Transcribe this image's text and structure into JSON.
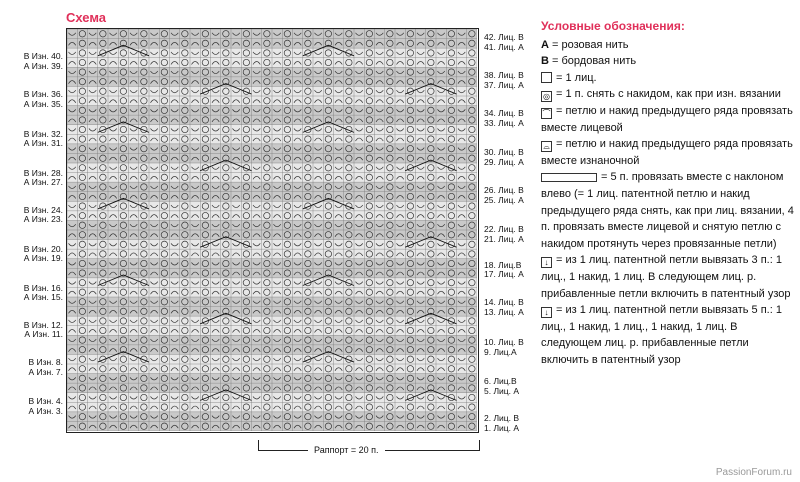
{
  "title": "Схема",
  "left_labels": [
    "В Изн. 40.",
    "А Изн. 39.",
    "В Изн. 36.",
    "А Изн. 35.",
    "В Изн. 32.",
    "А Изн. 31.",
    "В Изн. 28.",
    "А Изн. 27.",
    "В Изн. 24.",
    "А Изн. 23.",
    "В Изн. 20.",
    "А Изн. 19.",
    "В Изн. 16.",
    "А Изн. 15.",
    "В Изн. 12.",
    "А Изн. 11.",
    "В Изн. 8.",
    "А Изн. 7.",
    "В Изн. 4.",
    "А Изн. 3."
  ],
  "right_labels": [
    "42. Лиц. В",
    "41. Лиц. А",
    "38. Лиц. В",
    "37. Лиц. А",
    "34. Лиц. В",
    "33. Лиц. А",
    "30. Лиц. В",
    "29. Лиц. А",
    "26. Лиц. В",
    "25. Лиц. А",
    "22. Лиц. В",
    "21. Лиц. А",
    "18. Лиц.В",
    "17. Лиц. А",
    "14. Лиц. В",
    "13. Лиц. А",
    "10. Лиц. В",
    "9. Лиц.А",
    "6. Лиц.В",
    "5. Лиц. А",
    "2. Лиц. В",
    "1. Лиц. А"
  ],
  "repeat_label": "Раппорт = 20 п.",
  "legend": {
    "heading": "Условные обозначения:",
    "a_key": "А",
    "a_text": "= розовая нить",
    "b_key": "В",
    "b_text": "= бордовая нить",
    "knit_text": "= 1 лиц.",
    "slip_text": "= 1 п. снять с накидом, как при изн. вязании",
    "knit_together_text": "= петлю и накид предыдущего ряда провязать вместе лицевой",
    "purl_together_text": "= петлю и накид предыдущего ряда провязать вместе изнаночной",
    "dec5_text": "= 5 п. провязать вместе с наклоном влево (= 1 лиц. патентной петлю и накид предыдущего ряда снять, как при лиц. вязании, 4 п. провязать вместе лицевой и снятую петлю с накидом протянуть через провязанные петли)",
    "inc3_text": "= из 1 лиц. патентной петли вывязать 3 п.: 1 лиц., 1 накид, 1 лиц. В следующем лиц. р. прибавленные петли включить в патентный узор",
    "inc5_text": "= из 1 лиц. патентной петли вывязать 5 п.: 1 лиц., 1 накид, 1 лиц., 1 накид, 1 лиц. В следующем лиц. р. прибавленные петли включить в патентный узор"
  },
  "watermark": "PassionForum.ru"
}
